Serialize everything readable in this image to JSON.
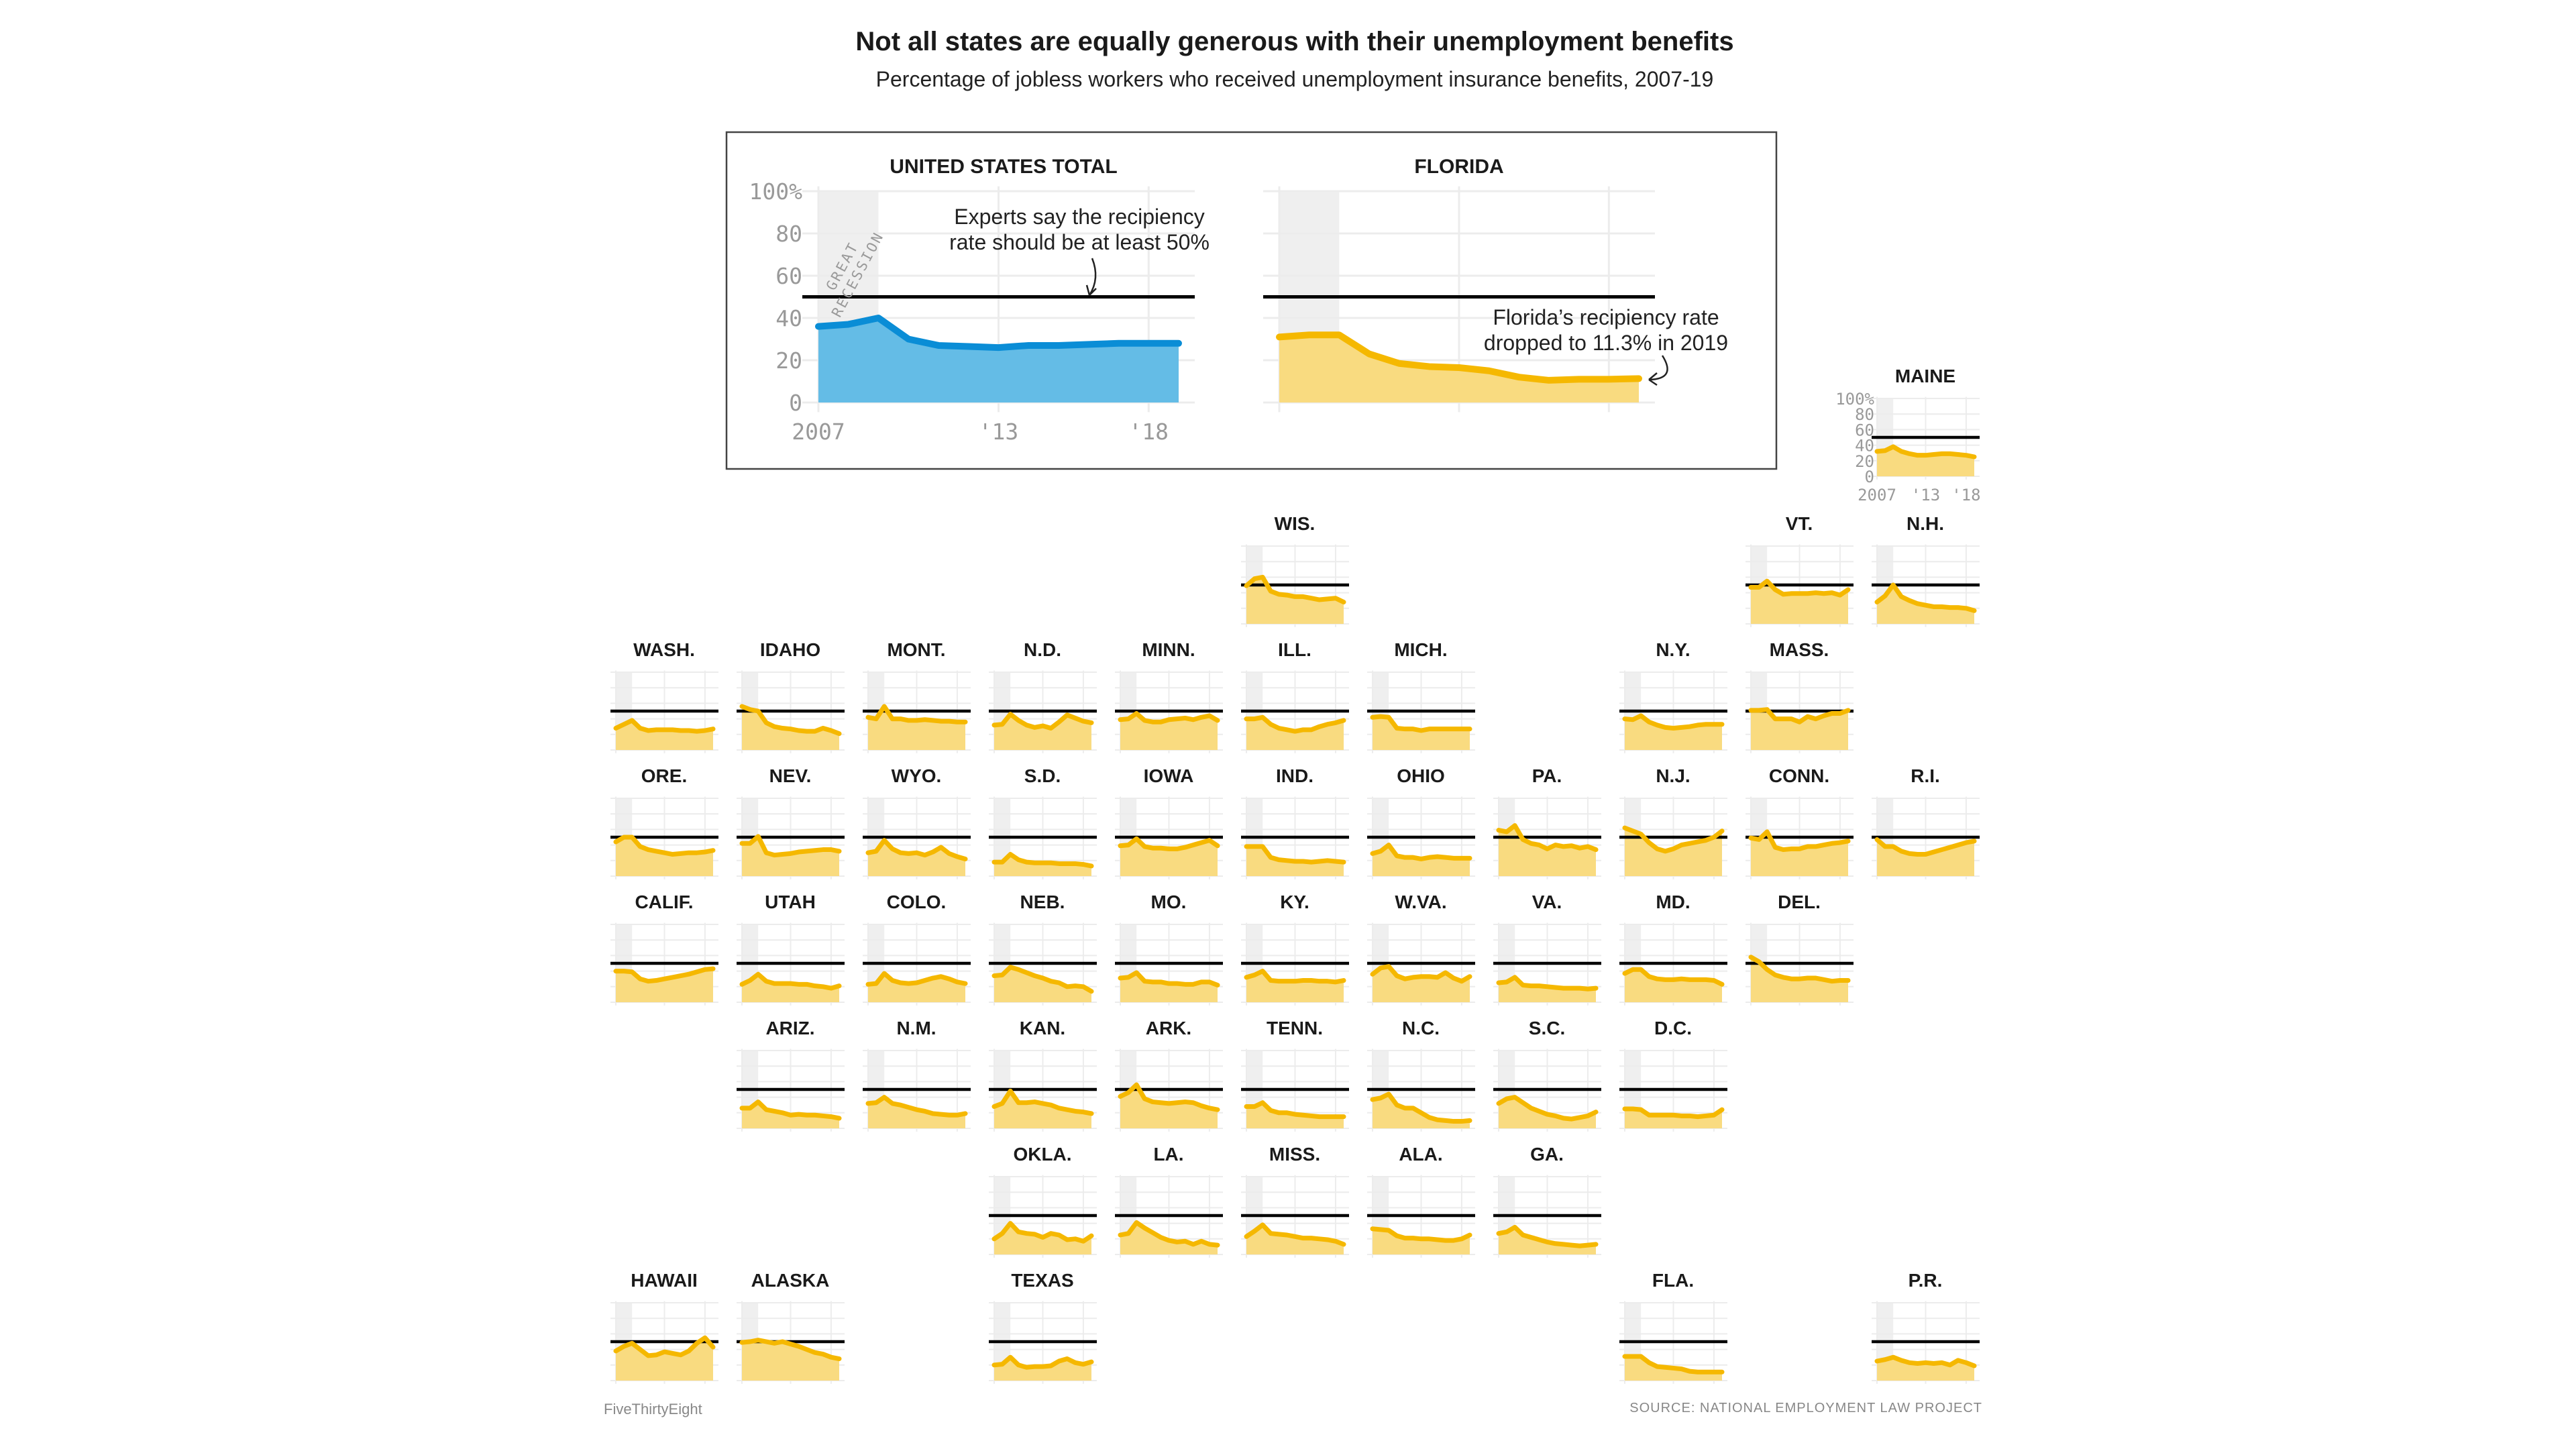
{
  "header": {
    "title": "Not all states are equally generous with their unemployment benefits",
    "subtitle": "Percentage of jobless workers who received unemployment insurance benefits, 2007-19"
  },
  "footer": {
    "credit": "FiveThirtyEight",
    "source": "SOURCE: NATIONAL EMPLOYMENT LAW PROJECT"
  },
  "colors": {
    "us_line": "#0a8dd6",
    "us_fill": "#64bce6",
    "state_line": "#f5b800",
    "state_fill": "#f9db80",
    "recession": "#efefef",
    "grid": "#ececec",
    "reference": "#000000"
  },
  "chart_data": {
    "type": "area",
    "years": [
      2007,
      2008,
      2009,
      2010,
      2011,
      2012,
      2013,
      2014,
      2015,
      2016,
      2017,
      2018,
      2019
    ],
    "ylim": [
      0,
      100
    ],
    "y_ticks": [
      "0",
      "20",
      "40",
      "60",
      "80",
      "100%"
    ],
    "x_ticks": [
      "2007",
      "'13",
      "'18"
    ],
    "reference_line": 50,
    "recession_label": [
      "GREAT",
      "RECESSION"
    ],
    "recession_years": [
      2007,
      2009
    ],
    "featured": [
      {
        "name": "UNITED STATES TOTAL",
        "values": [
          36,
          37,
          40,
          30,
          27,
          26.5,
          26,
          27,
          27,
          27.5,
          28,
          28,
          28
        ],
        "annotation": [
          "Experts say the recipiency",
          "rate should be at least 50%"
        ]
      },
      {
        "name": "FLORIDA",
        "values": [
          31,
          32,
          32,
          23,
          18.5,
          17,
          16.5,
          15,
          12,
          10.5,
          11,
          11,
          11.3
        ],
        "annotation": [
          "Florida’s recipiency rate",
          "dropped to 11.3% in 2019"
        ]
      }
    ],
    "states": [
      {
        "name": "MAINE",
        "values": [
          32,
          33,
          38,
          32,
          29,
          27,
          27,
          28,
          29,
          29,
          28,
          27,
          25
        ]
      },
      {
        "name": "WIS.",
        "values": [
          49,
          58,
          60,
          42,
          38,
          37,
          35,
          35,
          33,
          31,
          32,
          33,
          28
        ]
      },
      {
        "name": "VT.",
        "values": [
          47,
          47,
          55,
          44,
          38,
          39,
          39,
          39,
          40,
          39,
          40,
          37,
          44
        ]
      },
      {
        "name": "N.H.",
        "values": [
          28,
          36,
          50,
          35,
          30,
          26,
          24,
          22,
          22,
          21,
          21,
          20,
          17
        ]
      },
      {
        "name": "WASH.",
        "values": [
          28,
          33,
          38,
          28,
          25,
          26,
          26,
          26,
          25,
          25,
          24,
          25,
          27
        ]
      },
      {
        "name": "IDAHO",
        "values": [
          56,
          52,
          50,
          35,
          30,
          28,
          27,
          25,
          24,
          24,
          28,
          25,
          21
        ]
      },
      {
        "name": "MONT.",
        "values": [
          42,
          40,
          56,
          40,
          40,
          38,
          38,
          39,
          38,
          37,
          37,
          36,
          36
        ]
      },
      {
        "name": "N.D.",
        "values": [
          32,
          33,
          46,
          38,
          32,
          29,
          31,
          28,
          36,
          45,
          41,
          37,
          35
        ]
      },
      {
        "name": "MINN.",
        "values": [
          39,
          40,
          47,
          38,
          36,
          36,
          39,
          40,
          41,
          39,
          42,
          44,
          38
        ]
      },
      {
        "name": "ILL.",
        "values": [
          40,
          40,
          42,
          33,
          28,
          26,
          24,
          26,
          26,
          30,
          33,
          35,
          38
        ]
      },
      {
        "name": "MICH.",
        "values": [
          42,
          43,
          42,
          28,
          27,
          27,
          25,
          27,
          27,
          27,
          27,
          27,
          27
        ]
      },
      {
        "name": "N.Y.",
        "values": [
          40,
          39,
          44,
          36,
          32,
          29,
          28,
          29,
          30,
          32,
          33,
          33,
          33
        ]
      },
      {
        "name": "MASS.",
        "values": [
          51,
          51,
          52,
          40,
          40,
          40,
          36,
          43,
          40,
          44,
          47,
          47,
          51
        ]
      },
      {
        "name": "ORE.",
        "values": [
          44,
          50,
          50,
          38,
          34,
          32,
          30,
          28,
          29,
          30,
          30,
          31,
          33
        ]
      },
      {
        "name": "NEV.",
        "values": [
          42,
          42,
          51,
          30,
          27,
          28,
          29,
          31,
          32,
          33,
          34,
          34,
          32
        ]
      },
      {
        "name": "WYO.",
        "values": [
          30,
          32,
          46,
          35,
          30,
          29,
          30,
          27,
          31,
          37,
          29,
          25,
          22
        ]
      },
      {
        "name": "S.D.",
        "values": [
          18,
          18,
          28,
          21,
          18,
          17,
          17,
          17,
          16,
          16,
          16,
          15,
          13
        ]
      },
      {
        "name": "IOWA",
        "values": [
          39,
          40,
          48,
          38,
          36,
          36,
          35,
          35,
          37,
          40,
          43,
          46,
          39
        ]
      },
      {
        "name": "IND.",
        "values": [
          38,
          38,
          38,
          24,
          21,
          20,
          19,
          19,
          18,
          19,
          20,
          19,
          18
        ]
      },
      {
        "name": "OHIO",
        "values": [
          29,
          32,
          40,
          26,
          24,
          24,
          22,
          24,
          25,
          24,
          23,
          23,
          23
        ]
      },
      {
        "name": "PA.",
        "values": [
          59,
          57,
          65,
          47,
          42,
          40,
          35,
          40,
          38,
          39,
          36,
          38,
          34
        ]
      },
      {
        "name": "N.J.",
        "values": [
          62,
          58,
          54,
          43,
          35,
          32,
          35,
          40,
          42,
          44,
          46,
          50,
          58
        ]
      },
      {
        "name": "CONN.",
        "values": [
          49,
          47,
          57,
          37,
          34,
          35,
          35,
          38,
          38,
          40,
          42,
          43,
          45
        ]
      },
      {
        "name": "R.I.",
        "values": [
          47,
          38,
          38,
          32,
          29,
          28,
          28,
          31,
          34,
          37,
          40,
          43,
          45
        ]
      },
      {
        "name": "CALIF.",
        "values": [
          40,
          40,
          39,
          30,
          27,
          28,
          30,
          32,
          34,
          36,
          39,
          42,
          43
        ]
      },
      {
        "name": "UTAH",
        "values": [
          23,
          28,
          36,
          27,
          24,
          24,
          24,
          23,
          23,
          21,
          20,
          18,
          21
        ]
      },
      {
        "name": "COLO.",
        "values": [
          23,
          24,
          37,
          28,
          25,
          24,
          25,
          28,
          31,
          33,
          30,
          26,
          24
        ]
      },
      {
        "name": "NEB.",
        "values": [
          34,
          35,
          45,
          42,
          38,
          34,
          31,
          27,
          25,
          20,
          21,
          20,
          14
        ]
      },
      {
        "name": "MO.",
        "values": [
          31,
          32,
          38,
          27,
          26,
          26,
          24,
          24,
          23,
          23,
          26,
          26,
          22
        ]
      },
      {
        "name": "KY.",
        "values": [
          32,
          35,
          40,
          28,
          27,
          27,
          27,
          28,
          28,
          27,
          27,
          26,
          28
        ]
      },
      {
        "name": "W.VA.",
        "values": [
          36,
          44,
          46,
          34,
          30,
          32,
          33,
          33,
          32,
          38,
          31,
          27,
          33
        ]
      },
      {
        "name": "VA.",
        "values": [
          25,
          26,
          32,
          22,
          21,
          21,
          20,
          19,
          18,
          18,
          18,
          17,
          18
        ]
      },
      {
        "name": "MD.",
        "values": [
          37,
          42,
          42,
          33,
          30,
          29,
          29,
          30,
          29,
          29,
          29,
          28,
          23
        ]
      },
      {
        "name": "DEL.",
        "values": [
          58,
          52,
          42,
          35,
          32,
          30,
          30,
          31,
          31,
          29,
          27,
          28,
          28
        ]
      },
      {
        "name": "ARIZ.",
        "values": [
          26,
          26,
          34,
          24,
          22,
          20,
          17,
          18,
          17,
          17,
          16,
          15,
          13
        ]
      },
      {
        "name": "N.M.",
        "values": [
          32,
          33,
          40,
          32,
          30,
          27,
          24,
          22,
          19,
          18,
          17,
          17,
          19
        ]
      },
      {
        "name": "KAN.",
        "values": [
          28,
          32,
          48,
          33,
          33,
          34,
          32,
          30,
          26,
          24,
          22,
          21,
          19
        ]
      },
      {
        "name": "ARK.",
        "values": [
          41,
          46,
          56,
          38,
          34,
          33,
          32,
          33,
          34,
          33,
          29,
          26,
          24
        ]
      },
      {
        "name": "TENN.",
        "values": [
          28,
          28,
          33,
          23,
          20,
          20,
          18,
          17,
          16,
          15,
          15,
          15,
          15
        ]
      },
      {
        "name": "N.C.",
        "values": [
          37,
          39,
          44,
          30,
          26,
          26,
          20,
          14,
          11,
          10,
          9,
          9,
          10
        ]
      },
      {
        "name": "S.C.",
        "values": [
          32,
          38,
          40,
          33,
          26,
          22,
          18,
          16,
          13,
          12,
          14,
          16,
          21
        ]
      },
      {
        "name": "D.C.",
        "values": [
          25,
          25,
          24,
          17,
          17,
          17,
          17,
          16,
          16,
          15,
          16,
          17,
          24
        ]
      },
      {
        "name": "OKLA.",
        "values": [
          20,
          27,
          40,
          29,
          27,
          26,
          22,
          27,
          25,
          19,
          20,
          17,
          24
        ]
      },
      {
        "name": "LA.",
        "values": [
          25,
          27,
          41,
          34,
          28,
          22,
          18,
          16,
          17,
          13,
          17,
          13,
          12
        ]
      },
      {
        "name": "MISS.",
        "values": [
          23,
          30,
          38,
          27,
          26,
          25,
          23,
          21,
          21,
          20,
          19,
          17,
          13
        ]
      },
      {
        "name": "ALA.",
        "values": [
          33,
          32,
          31,
          24,
          21,
          21,
          20,
          20,
          19,
          18,
          18,
          20,
          25
        ]
      },
      {
        "name": "GA.",
        "values": [
          27,
          29,
          35,
          25,
          22,
          19,
          16,
          14,
          13,
          12,
          11,
          12,
          13
        ]
      },
      {
        "name": "HAWAII",
        "values": [
          38,
          44,
          48,
          40,
          32,
          33,
          37,
          35,
          33,
          38,
          48,
          55,
          43
        ]
      },
      {
        "name": "ALASKA",
        "values": [
          49,
          50,
          52,
          50,
          48,
          50,
          47,
          44,
          40,
          36,
          34,
          30,
          28
        ]
      },
      {
        "name": "TEXAS",
        "values": [
          20,
          21,
          30,
          20,
          17,
          18,
          18,
          19,
          25,
          28,
          23,
          21,
          24
        ]
      },
      {
        "name": "FLA.",
        "values": [
          31,
          31,
          31,
          23,
          18,
          17,
          16,
          15,
          12,
          11,
          11,
          11,
          11
        ]
      },
      {
        "name": "P.R.",
        "values": [
          25,
          27,
          30,
          26,
          23,
          22,
          23,
          22,
          23,
          20,
          26,
          23,
          19
        ]
      }
    ]
  }
}
